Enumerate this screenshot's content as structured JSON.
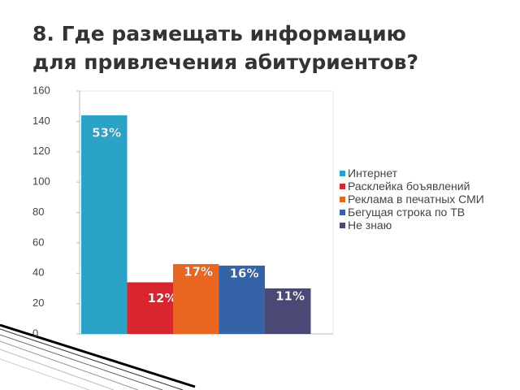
{
  "chart_data": {
    "type": "bar",
    "title": [
      "8. Где размещать информацию",
      "для привлечения абитуриентов?"
    ],
    "categories": [
      null
    ],
    "series": [
      {
        "name": "Интернет",
        "color": "#2aa3c6",
        "values": [
          144
        ],
        "value_labels": [
          "53%"
        ]
      },
      {
        "name": "Расклейка боъявлений",
        "color": "#d9262e",
        "values": [
          34
        ],
        "value_labels": [
          "12%"
        ]
      },
      {
        "name": "Реклама в печатных СМИ",
        "color": "#e8661f",
        "values": [
          46
        ],
        "value_labels": [
          "17%"
        ]
      },
      {
        "name": "Бегущая строка по ТВ",
        "color": "#3563a8",
        "values": [
          45
        ],
        "value_labels": [
          "16%"
        ]
      },
      {
        "name": "Не знаю",
        "color": "#4a4874",
        "values": [
          30
        ],
        "value_labels": [
          "11%"
        ]
      }
    ],
    "ylim": [
      0,
      160
    ],
    "yticks": [
      0,
      20,
      40,
      60,
      80,
      100,
      120,
      140,
      160
    ],
    "grid": false,
    "legend": "right"
  }
}
